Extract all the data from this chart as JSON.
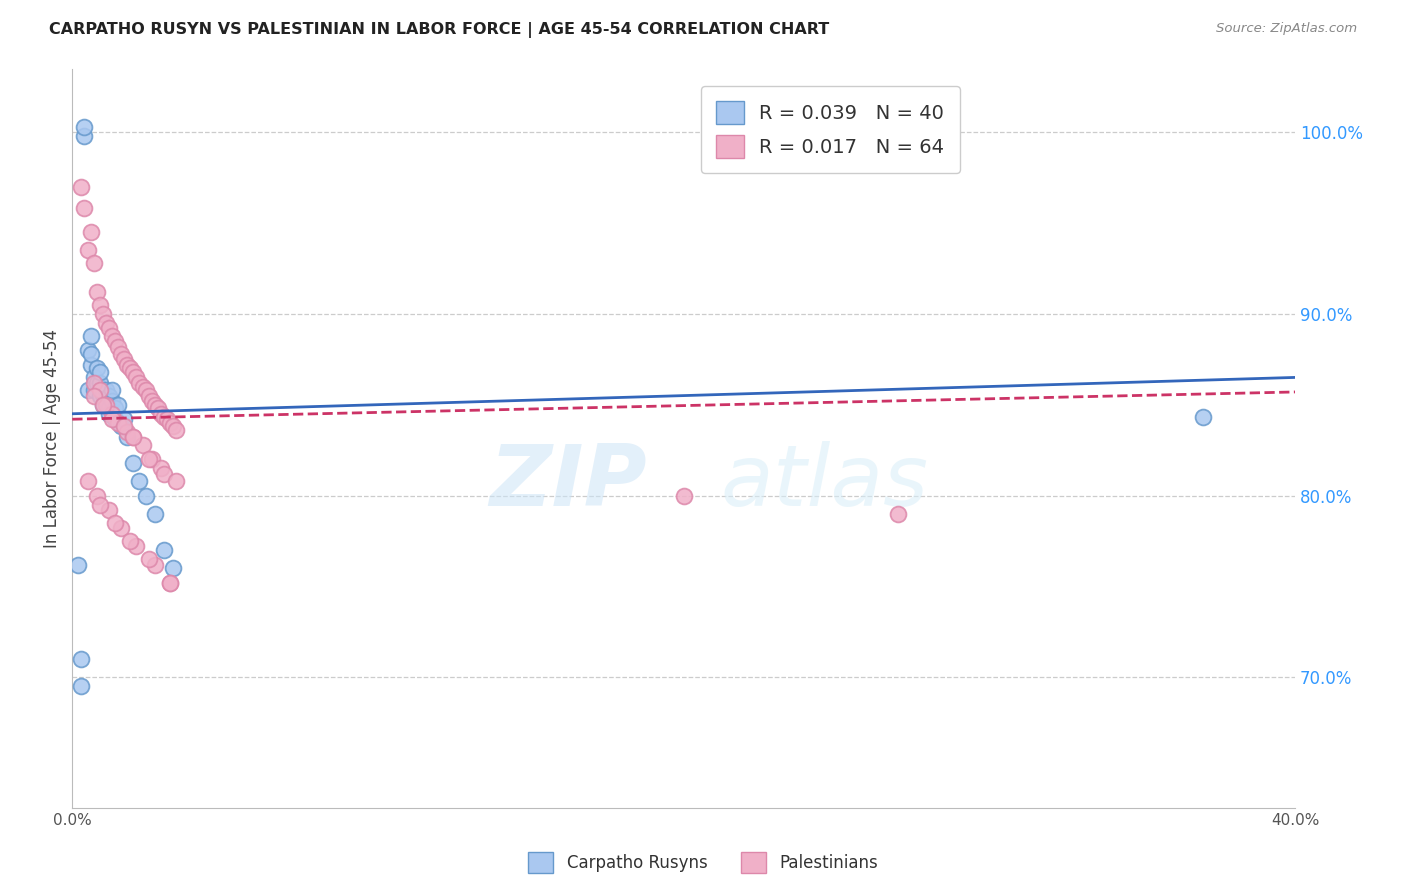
{
  "title": "CARPATHO RUSYN VS PALESTINIAN IN LABOR FORCE | AGE 45-54 CORRELATION CHART",
  "source": "Source: ZipAtlas.com",
  "ylabel_left": "In Labor Force | Age 45-54",
  "xmin": 0.0,
  "xmax": 0.4,
  "ymin": 0.628,
  "ymax": 1.035,
  "right_yticks": [
    0.7,
    0.8,
    0.9,
    1.0
  ],
  "right_yticklabels": [
    "70.0%",
    "80.0%",
    "90.0%",
    "100.0%"
  ],
  "xticks": [
    0.0,
    0.05,
    0.1,
    0.15,
    0.2,
    0.25,
    0.3,
    0.35,
    0.4
  ],
  "xticklabels": [
    "0.0%",
    "",
    "",
    "",
    "",
    "",
    "",
    "",
    "40.0%"
  ],
  "watermark_zip": "ZIP",
  "watermark_atlas": "atlas",
  "blue_scatter_color": "#aac8f0",
  "blue_edge_color": "#6699cc",
  "pink_scatter_color": "#f0b0c8",
  "pink_edge_color": "#dd88aa",
  "blue_line_color": "#3366bb",
  "pink_line_color": "#cc3366",
  "blue_r": "0.039",
  "blue_n": "40",
  "pink_r": "0.017",
  "pink_n": "64",
  "carpatho_x": [
    0.004,
    0.004,
    0.005,
    0.005,
    0.006,
    0.006,
    0.006,
    0.007,
    0.007,
    0.008,
    0.008,
    0.009,
    0.009,
    0.009,
    0.01,
    0.01,
    0.01,
    0.011,
    0.011,
    0.012,
    0.012,
    0.012,
    0.013,
    0.013,
    0.014,
    0.014,
    0.015,
    0.016,
    0.017,
    0.018,
    0.02,
    0.022,
    0.024,
    0.027,
    0.03,
    0.033,
    0.002,
    0.003,
    0.003,
    0.37
  ],
  "carpatho_y": [
    0.998,
    1.003,
    0.88,
    0.858,
    0.872,
    0.888,
    0.878,
    0.865,
    0.858,
    0.862,
    0.87,
    0.855,
    0.862,
    0.868,
    0.858,
    0.85,
    0.856,
    0.852,
    0.858,
    0.848,
    0.855,
    0.845,
    0.852,
    0.858,
    0.848,
    0.842,
    0.85,
    0.838,
    0.842,
    0.832,
    0.818,
    0.808,
    0.8,
    0.79,
    0.77,
    0.76,
    0.762,
    0.71,
    0.695,
    0.843
  ],
  "palestinian_x": [
    0.003,
    0.004,
    0.005,
    0.006,
    0.007,
    0.008,
    0.009,
    0.01,
    0.011,
    0.012,
    0.013,
    0.014,
    0.015,
    0.016,
    0.017,
    0.018,
    0.019,
    0.02,
    0.021,
    0.022,
    0.023,
    0.024,
    0.025,
    0.026,
    0.027,
    0.028,
    0.029,
    0.03,
    0.031,
    0.032,
    0.033,
    0.034,
    0.007,
    0.009,
    0.011,
    0.013,
    0.015,
    0.018,
    0.02,
    0.023,
    0.026,
    0.029,
    0.007,
    0.01,
    0.013,
    0.017,
    0.02,
    0.025,
    0.03,
    0.034,
    0.005,
    0.008,
    0.012,
    0.016,
    0.021,
    0.027,
    0.032,
    0.009,
    0.014,
    0.019,
    0.025,
    0.032,
    0.2,
    0.27
  ],
  "palestinian_y": [
    0.97,
    0.958,
    0.935,
    0.945,
    0.928,
    0.912,
    0.905,
    0.9,
    0.895,
    0.892,
    0.888,
    0.885,
    0.882,
    0.878,
    0.875,
    0.872,
    0.87,
    0.868,
    0.865,
    0.862,
    0.86,
    0.858,
    0.855,
    0.852,
    0.85,
    0.848,
    0.845,
    0.843,
    0.842,
    0.84,
    0.838,
    0.836,
    0.862,
    0.858,
    0.85,
    0.845,
    0.84,
    0.835,
    0.832,
    0.828,
    0.82,
    0.815,
    0.855,
    0.85,
    0.842,
    0.838,
    0.832,
    0.82,
    0.812,
    0.808,
    0.808,
    0.8,
    0.792,
    0.782,
    0.772,
    0.762,
    0.752,
    0.795,
    0.785,
    0.775,
    0.765,
    0.752,
    0.8,
    0.79
  ]
}
